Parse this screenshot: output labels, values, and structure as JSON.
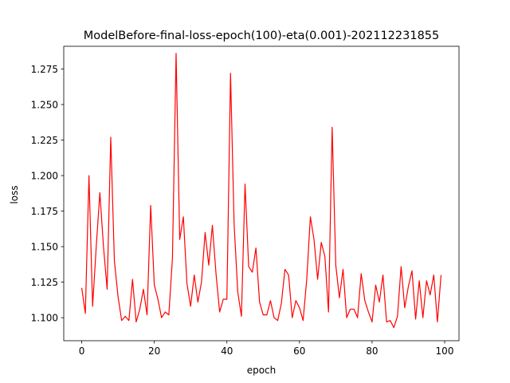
{
  "chart_data": {
    "type": "line",
    "title": "ModelBefore-final-loss-epoch(100)-eta(0.001)-202112231855",
    "xlabel": "epoch",
    "ylabel": "loss",
    "xlim": [
      -4.95,
      103.95
    ],
    "ylim": [
      1.0838,
      1.291
    ],
    "xticks": [
      0,
      20,
      40,
      60,
      80,
      100
    ],
    "yticks": [
      1.1,
      1.125,
      1.15,
      1.175,
      1.2,
      1.225,
      1.25,
      1.275
    ],
    "ytick_labels": [
      "1.100",
      "1.125",
      "1.150",
      "1.175",
      "1.200",
      "1.225",
      "1.250",
      "1.275"
    ],
    "grid": false,
    "series": [
      {
        "color": "#ff0000",
        "x": [
          0,
          1,
          2,
          3,
          4,
          5,
          6,
          7,
          8,
          9,
          10,
          11,
          12,
          13,
          14,
          15,
          16,
          17,
          18,
          19,
          20,
          21,
          22,
          23,
          24,
          25,
          26,
          27,
          28,
          29,
          30,
          31,
          32,
          33,
          34,
          35,
          36,
          37,
          38,
          39,
          40,
          41,
          42,
          43,
          44,
          45,
          46,
          47,
          48,
          49,
          50,
          51,
          52,
          53,
          54,
          55,
          56,
          57,
          58,
          59,
          60,
          61,
          62,
          63,
          64,
          65,
          66,
          67,
          68,
          69,
          70,
          71,
          72,
          73,
          74,
          75,
          76,
          77,
          78,
          79,
          80,
          81,
          82,
          83,
          84,
          85,
          86,
          87,
          88,
          89,
          90,
          91,
          92,
          93,
          94,
          95,
          96,
          97,
          98,
          99
        ],
        "values": [
          1.121,
          1.103,
          1.2,
          1.108,
          1.15,
          1.188,
          1.15,
          1.12,
          1.227,
          1.14,
          1.115,
          1.098,
          1.101,
          1.098,
          1.127,
          1.097,
          1.106,
          1.12,
          1.102,
          1.179,
          1.123,
          1.113,
          1.1,
          1.104,
          1.102,
          1.142,
          1.286,
          1.155,
          1.171,
          1.124,
          1.108,
          1.13,
          1.111,
          1.125,
          1.16,
          1.137,
          1.165,
          1.131,
          1.104,
          1.113,
          1.113,
          1.272,
          1.165,
          1.118,
          1.101,
          1.194,
          1.136,
          1.132,
          1.149,
          1.111,
          1.102,
          1.102,
          1.112,
          1.1,
          1.098,
          1.11,
          1.134,
          1.13,
          1.1,
          1.112,
          1.107,
          1.098,
          1.127,
          1.171,
          1.155,
          1.127,
          1.153,
          1.143,
          1.104,
          1.234,
          1.137,
          1.114,
          1.134,
          1.1,
          1.106,
          1.106,
          1.1,
          1.131,
          1.112,
          1.104,
          1.097,
          1.123,
          1.111,
          1.13,
          1.097,
          1.098,
          1.093,
          1.101,
          1.136,
          1.107,
          1.122,
          1.133,
          1.099,
          1.126,
          1.1,
          1.126,
          1.116,
          1.13,
          1.097,
          1.13
        ]
      }
    ]
  }
}
